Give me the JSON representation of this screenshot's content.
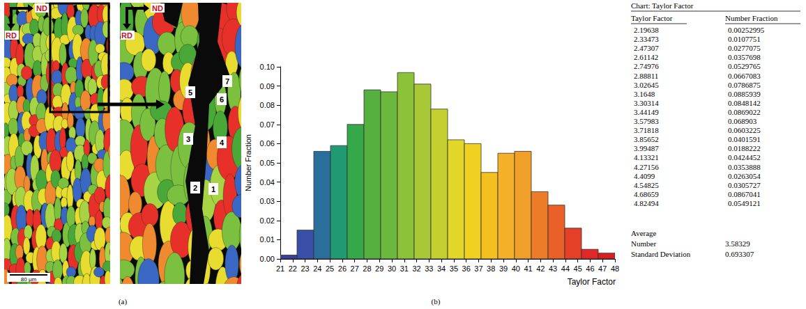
{
  "panel_a": {
    "label": "(a)",
    "direction_labels": [
      "ND",
      "RD"
    ],
    "scale_bar": "80 μm",
    "grain_labels": [
      "1",
      "2",
      "3",
      "4",
      "5",
      "6",
      "7"
    ]
  },
  "panel_b": {
    "label": "(b)"
  },
  "chart_data": {
    "type": "histogram",
    "x_label": "Taylor Factor",
    "y_label": "Number Fraction",
    "bins": [
      21,
      22.35,
      23.7,
      25.05,
      26.4,
      27.75,
      29.1,
      30.45,
      31.8,
      33.15,
      34.5,
      35.85,
      37.2,
      38.55,
      39.9,
      41.25,
      42.6,
      43.95,
      45.3,
      46.65,
      48
    ],
    "values": [
      0.002,
      0.015,
      0.056,
      0.059,
      0.07,
      0.088,
      0.087,
      0.097,
      0.091,
      0.078,
      0.062,
      0.06,
      0.045,
      0.055,
      0.056,
      0.035,
      0.028,
      0.016,
      0.005,
      0.003
    ],
    "colors": [
      "#3b3f9c",
      "#3a4fa8",
      "#2a6e9c",
      "#1f9a72",
      "#35a84a",
      "#55b040",
      "#6cb83c",
      "#8cc23a",
      "#a8c838",
      "#c4d030",
      "#e2d628",
      "#f0d020",
      "#f4c020",
      "#f4b028",
      "#f0a028",
      "#ec7c28",
      "#e86028",
      "#e44028",
      "#e02828",
      "#d82020"
    ],
    "xlim": [
      21,
      48
    ],
    "xticks": [
      21,
      22,
      23,
      24,
      25,
      26,
      27,
      28,
      29,
      30,
      31,
      32,
      33,
      34,
      35,
      36,
      37,
      38,
      39,
      40,
      41,
      42,
      43,
      44,
      45,
      46,
      47,
      48
    ],
    "ylim": [
      0,
      0.1
    ],
    "yticks": [
      {
        "value": 0,
        "label": "0.00"
      },
      {
        "value": 0.01,
        "label": "0.01"
      },
      {
        "value": 0.02,
        "label": "0.02"
      },
      {
        "value": 0.03,
        "label": "0.03"
      },
      {
        "value": 0.04,
        "label": "0.04"
      },
      {
        "value": 0.05,
        "label": "0.05"
      },
      {
        "value": 0.06,
        "label": "0.06"
      },
      {
        "value": 0.07,
        "label": "0.07"
      },
      {
        "value": 0.08,
        "label": "0.08"
      },
      {
        "value": 0.09,
        "label": "0.09"
      },
      {
        "value": 0.1,
        "label": "0.10"
      }
    ],
    "grid": false
  },
  "table": {
    "title": "Chart: Taylor Factor",
    "columns": [
      "Taylor Factor",
      "Number Fraction"
    ],
    "rows": [
      [
        "2.19638",
        "0.00252995"
      ],
      [
        "2.33473",
        "0.0107751"
      ],
      [
        "2.47307",
        "0.0277075"
      ],
      [
        "2.61142",
        "0.0357698"
      ],
      [
        "2.74976",
        "0.0529765"
      ],
      [
        "2.88811",
        "0.0667083"
      ],
      [
        "3.02645",
        "0.0786875"
      ],
      [
        "3.1648",
        "0.0885939"
      ],
      [
        "3.30314",
        "0.0848142"
      ],
      [
        "3.44149",
        "0.0869022"
      ],
      [
        "3.57983",
        "0.068903"
      ],
      [
        "3.71818",
        "0.0603225"
      ],
      [
        "3.85652",
        "0.0401591"
      ],
      [
        "3.99487",
        "0.0188222"
      ],
      [
        "4.13321",
        "0.0424452"
      ],
      [
        "4.27156",
        "0.0353888"
      ],
      [
        "4.4099",
        "0.0263054"
      ],
      [
        "4.54825",
        "0.0305727"
      ],
      [
        "4.68659",
        "0.0867041"
      ],
      [
        "4.82494",
        "0.0549121"
      ]
    ],
    "summary": {
      "heading": "Average",
      "rows": [
        [
          "Number",
          "3.58329"
        ],
        [
          "Standard Deviation",
          "0.693307"
        ]
      ]
    }
  }
}
